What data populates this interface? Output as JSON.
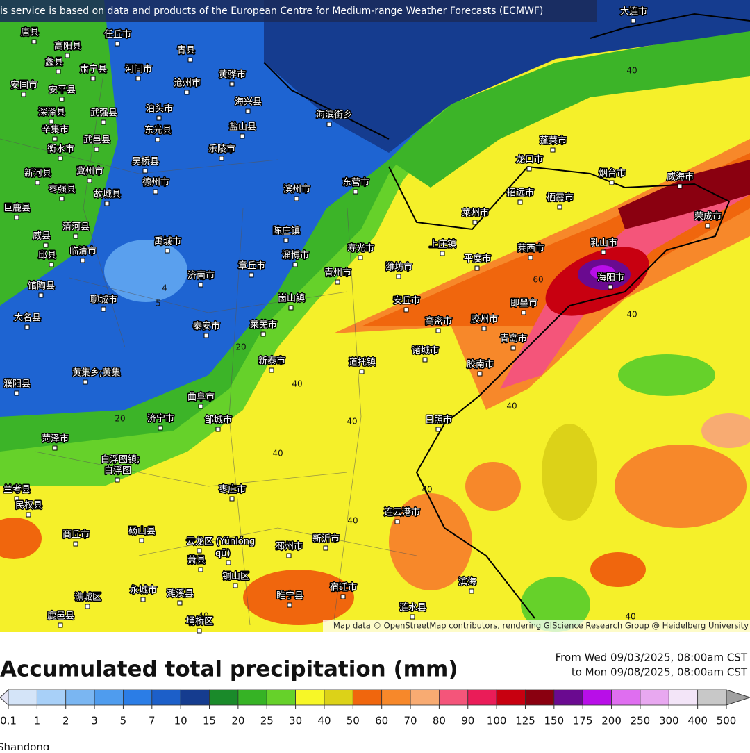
{
  "header": {
    "notice": "is service is based on data and products of the European Centre for Medium-range Weather Forecasts (ECMWF)"
  },
  "map": {
    "attribution": "Map data © OpenStreetMap contributors, rendering GIScience Research Group @ Heidelberg University",
    "places": [
      "唐县",
      "任丘市",
      "高阳县",
      "青县",
      "蠡县",
      "肃宁县",
      "河间市",
      "沧州市",
      "黄骅市",
      "安国市",
      "安平县",
      "泊头市",
      "海兴县",
      "深泽县",
      "武强县",
      "盐山县",
      "辛集市",
      "东光县",
      "武邑县",
      "衡水市",
      "吴桥县",
      "乐陵市",
      "新河县",
      "冀州市",
      "德州市",
      "枣强县",
      "故城县",
      "滨州市",
      "东营市",
      "巨鹿县",
      "清河县",
      "威县",
      "临清市",
      "邱县",
      "禹城市",
      "陈庄镇",
      "淄博市",
      "寿光市",
      "潍坊市",
      "平度市",
      "莱西市",
      "乳山市",
      "济南市",
      "章丘市",
      "青州市",
      "聊城市",
      "大名县",
      "馆陶县",
      "崮山镇",
      "安丘市",
      "即墨市",
      "高密市",
      "胶州市",
      "泰安市",
      "莱芜市",
      "青岛市",
      "新泰市",
      "诸城市",
      "道托镇",
      "胶南市",
      "濮阳县",
      "黄集乡;黄集",
      "曲阜市",
      "济宁市",
      "邹城市",
      "日照市",
      "菏泽市",
      "白浮图镇;",
      "白浮图",
      "兰考县",
      "枣庄市",
      "民权县",
      "连云港市",
      "商丘市",
      "砀山县",
      "云龙区 (Yúnlóng",
      "qū)",
      "邳州市",
      "新沂市",
      "萧县",
      "铜山区",
      "滨海",
      "永城市",
      "濉溪县",
      "睢宁县",
      "宿迁市",
      "谯城区",
      "鹿邑县",
      "埇桥区",
      "涟水县",
      "蓬莱市",
      "龙口市",
      "烟台市",
      "威海市",
      "招远市",
      "栖霞市",
      "莱州市",
      "荣成市",
      "海阳市",
      "上庄镇",
      "大连市",
      "海滨街乡"
    ],
    "contour_labels": [
      40,
      40,
      40,
      40,
      40,
      40,
      40,
      40,
      40,
      40,
      60,
      20,
      20,
      5,
      4
    ]
  },
  "legend": {
    "title": "Accumulated total precipitation (mm)",
    "period_from": "From Wed 09/03/2025, 08:00am CST",
    "period_to": "to Mon 09/08/2025, 08:00am CST",
    "ticks": [
      0.1,
      1,
      2,
      3,
      5,
      7,
      10,
      15,
      20,
      25,
      30,
      40,
      50,
      60,
      70,
      80,
      90,
      100,
      125,
      150,
      175,
      200,
      250,
      300,
      400,
      500
    ],
    "colors": [
      "#d4e4f8",
      "#a8d0f8",
      "#7ab6f2",
      "#4f9cee",
      "#2b7de6",
      "#1c5fc9",
      "#153c8f",
      "#1a8a2a",
      "#36b325",
      "#66d12a",
      "#f7f727",
      "#dcd218",
      "#f0660d",
      "#f7882a",
      "#f8ab72",
      "#f4557a",
      "#ea1c58",
      "#c80010",
      "#8a0010",
      "#6a0a90",
      "#b80ee8",
      "#df6ef0",
      "#e8a8f0",
      "#f3e5f8",
      "#c8c8c8"
    ]
  },
  "footer": {
    "region": "Shandong"
  }
}
